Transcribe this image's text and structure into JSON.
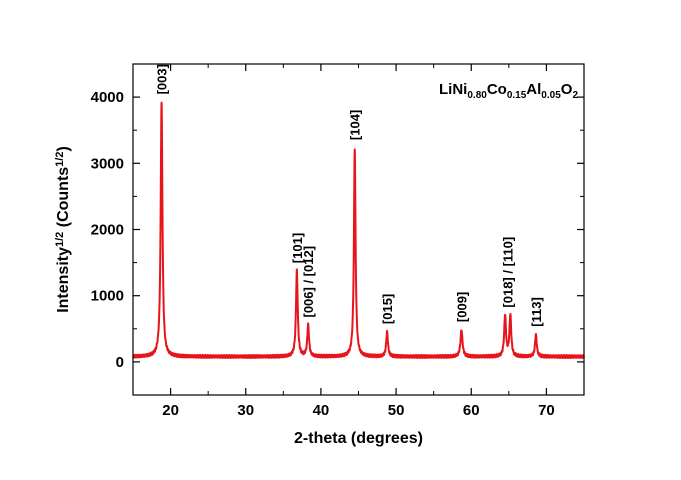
{
  "chart_data": {
    "type": "line",
    "formula": {
      "parts": [
        {
          "text": "LiNi",
          "sub": false
        },
        {
          "text": "0.80",
          "sub": true
        },
        {
          "text": "Co",
          "sub": false
        },
        {
          "text": "0.15",
          "sub": true
        },
        {
          "text": "Al",
          "sub": false
        },
        {
          "text": "0.05",
          "sub": true
        },
        {
          "text": "O",
          "sub": false
        },
        {
          "text": "2",
          "sub": true
        }
      ]
    },
    "xlabel": "2-theta (degrees)",
    "ylabel": {
      "parts": [
        {
          "text": "Intensity",
          "sup": false
        },
        {
          "text": "1/2",
          "sup": true
        },
        {
          "text": " (Counts",
          "sup": false
        },
        {
          "text": "1/2",
          "sup": true
        },
        {
          "text": ")",
          "sup": false
        }
      ]
    },
    "xlim": [
      15,
      75
    ],
    "ylim": [
      -500,
      4500
    ],
    "x_ticks": [
      20,
      30,
      40,
      50,
      60,
      70
    ],
    "y_ticks": [
      0,
      1000,
      2000,
      3000,
      4000
    ],
    "x_minor_ticks": [
      15,
      25,
      35,
      45,
      55,
      65,
      75
    ],
    "y_minor_ticks": [
      -500,
      500,
      1500,
      2500,
      3500,
      4500
    ],
    "grid": false,
    "line_color": "#e8141b",
    "baseline": 80,
    "series": [
      {
        "peaks": [
          {
            "x": 18.8,
            "height": 3840,
            "width": 0.28,
            "label": "[003]"
          },
          {
            "x": 36.8,
            "height": 1290,
            "width": 0.28,
            "label": "[101]"
          },
          {
            "x": 38.3,
            "height": 470,
            "width": 0.28,
            "label": "[006] / [012]"
          },
          {
            "x": 44.5,
            "height": 3150,
            "width": 0.26,
            "label": "[104]"
          },
          {
            "x": 48.8,
            "height": 370,
            "width": 0.28,
            "label": "[015]"
          },
          {
            "x": 58.7,
            "height": 400,
            "width": 0.32,
            "label": "[009]"
          },
          {
            "x": 64.5,
            "height": 620,
            "width": 0.28,
            "label": null
          },
          {
            "x": 65.2,
            "height": 620,
            "width": 0.28,
            "label": "[018] / [110]"
          },
          {
            "x": 68.6,
            "height": 330,
            "width": 0.28,
            "label": "[113]"
          }
        ]
      }
    ]
  }
}
